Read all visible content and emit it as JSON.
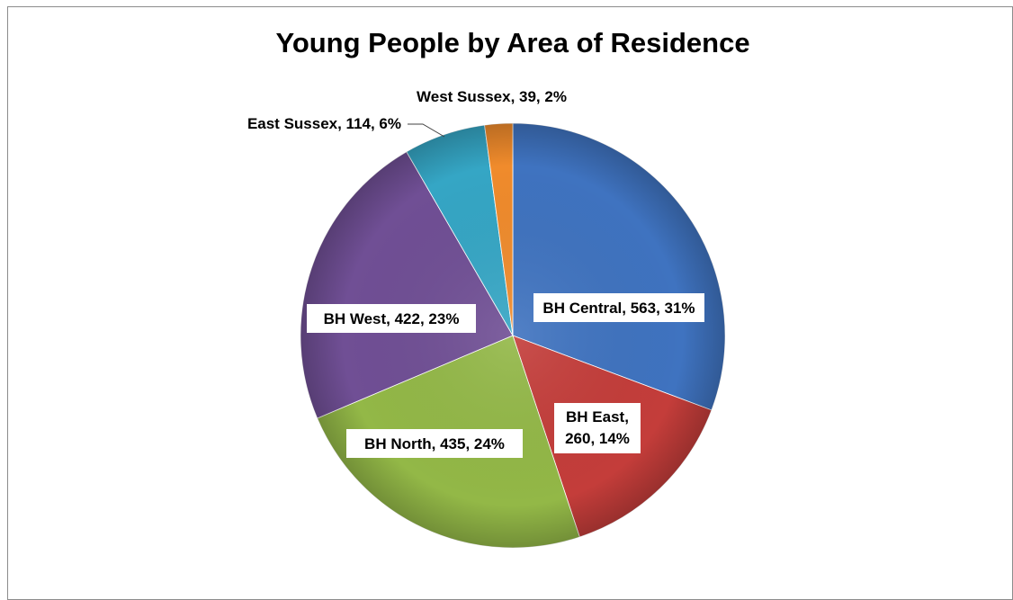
{
  "chart_data": {
    "type": "pie",
    "title": "Young People by Area of Residence",
    "slices": [
      {
        "label": "BH Central",
        "value": 563,
        "percent": "31%",
        "color": "#3f73c0"
      },
      {
        "label": "BH East",
        "value": 260,
        "percent": "14%",
        "color": "#c43d3a"
      },
      {
        "label": "BH North",
        "value": 435,
        "percent": "24%",
        "color": "#93b847"
      },
      {
        "label": "BH West",
        "value": 422,
        "percent": "23%",
        "color": "#704f95"
      },
      {
        "label": "East Sussex",
        "value": 114,
        "percent": "6%",
        "color": "#35a6c5"
      },
      {
        "label": "West Sussex",
        "value": 39,
        "percent": "2%",
        "color": "#f08b2c"
      }
    ],
    "data_labels": [
      "BH Central, 563, 31%",
      "BH East, 260, 14%",
      "BH North, 435, 24%",
      "BH West, 422, 23%",
      "East Sussex, 114, 6%",
      "West Sussex, 39, 2%"
    ],
    "legend": "none"
  }
}
